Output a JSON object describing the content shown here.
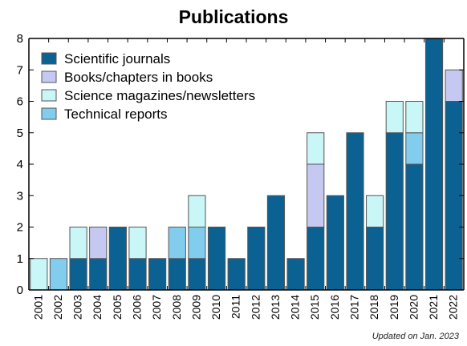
{
  "chart_data": {
    "type": "bar",
    "stacked": true,
    "title": "Publications",
    "xlabel": "",
    "ylabel": "",
    "ylim": [
      0,
      8
    ],
    "y_ticks": [
      "0",
      "1",
      "2",
      "3",
      "4",
      "5",
      "6",
      "7",
      "8"
    ],
    "categories": [
      "2001",
      "2002",
      "2003",
      "2004",
      "2005",
      "2006",
      "2007",
      "2008",
      "2009",
      "2010",
      "2011",
      "2012",
      "2013",
      "2014",
      "2015",
      "2016",
      "2017",
      "2018",
      "2019",
      "2020",
      "2021",
      "2022"
    ],
    "series": [
      {
        "name": "Scientific journals",
        "color": "#0b6191",
        "values": [
          0,
          0,
          1,
          1,
          2,
          1,
          1,
          1,
          1,
          2,
          1,
          2,
          3,
          1,
          2,
          3,
          5,
          2,
          5,
          4,
          8,
          6
        ]
      },
      {
        "name": "Books/chapters in books",
        "color": "#c5c9f2",
        "values": [
          0,
          0,
          0,
          1,
          0,
          0,
          0,
          0,
          0,
          0,
          0,
          0,
          0,
          0,
          2,
          0,
          0,
          0,
          0,
          0,
          0,
          1
        ]
      },
      {
        "name": "Technical reports",
        "color": "#82cdee",
        "values": [
          0,
          1,
          0,
          0,
          0,
          0,
          0,
          1,
          1,
          0,
          0,
          0,
          0,
          0,
          0,
          0,
          0,
          0,
          0,
          1,
          0,
          0
        ]
      },
      {
        "name": "Science magazines/newsletters",
        "color": "#c9f6f7",
        "values": [
          1,
          0,
          1,
          0,
          0,
          1,
          0,
          0,
          1,
          0,
          0,
          0,
          0,
          0,
          1,
          0,
          0,
          1,
          1,
          1,
          0,
          0
        ]
      }
    ],
    "legend_order": [
      "Scientific journals",
      "Books/chapters in books",
      "Science magazines/newsletters",
      "Technical reports"
    ],
    "legend_position": "top-left",
    "grid": false,
    "footnote": "Updated on Jan. 2023"
  }
}
